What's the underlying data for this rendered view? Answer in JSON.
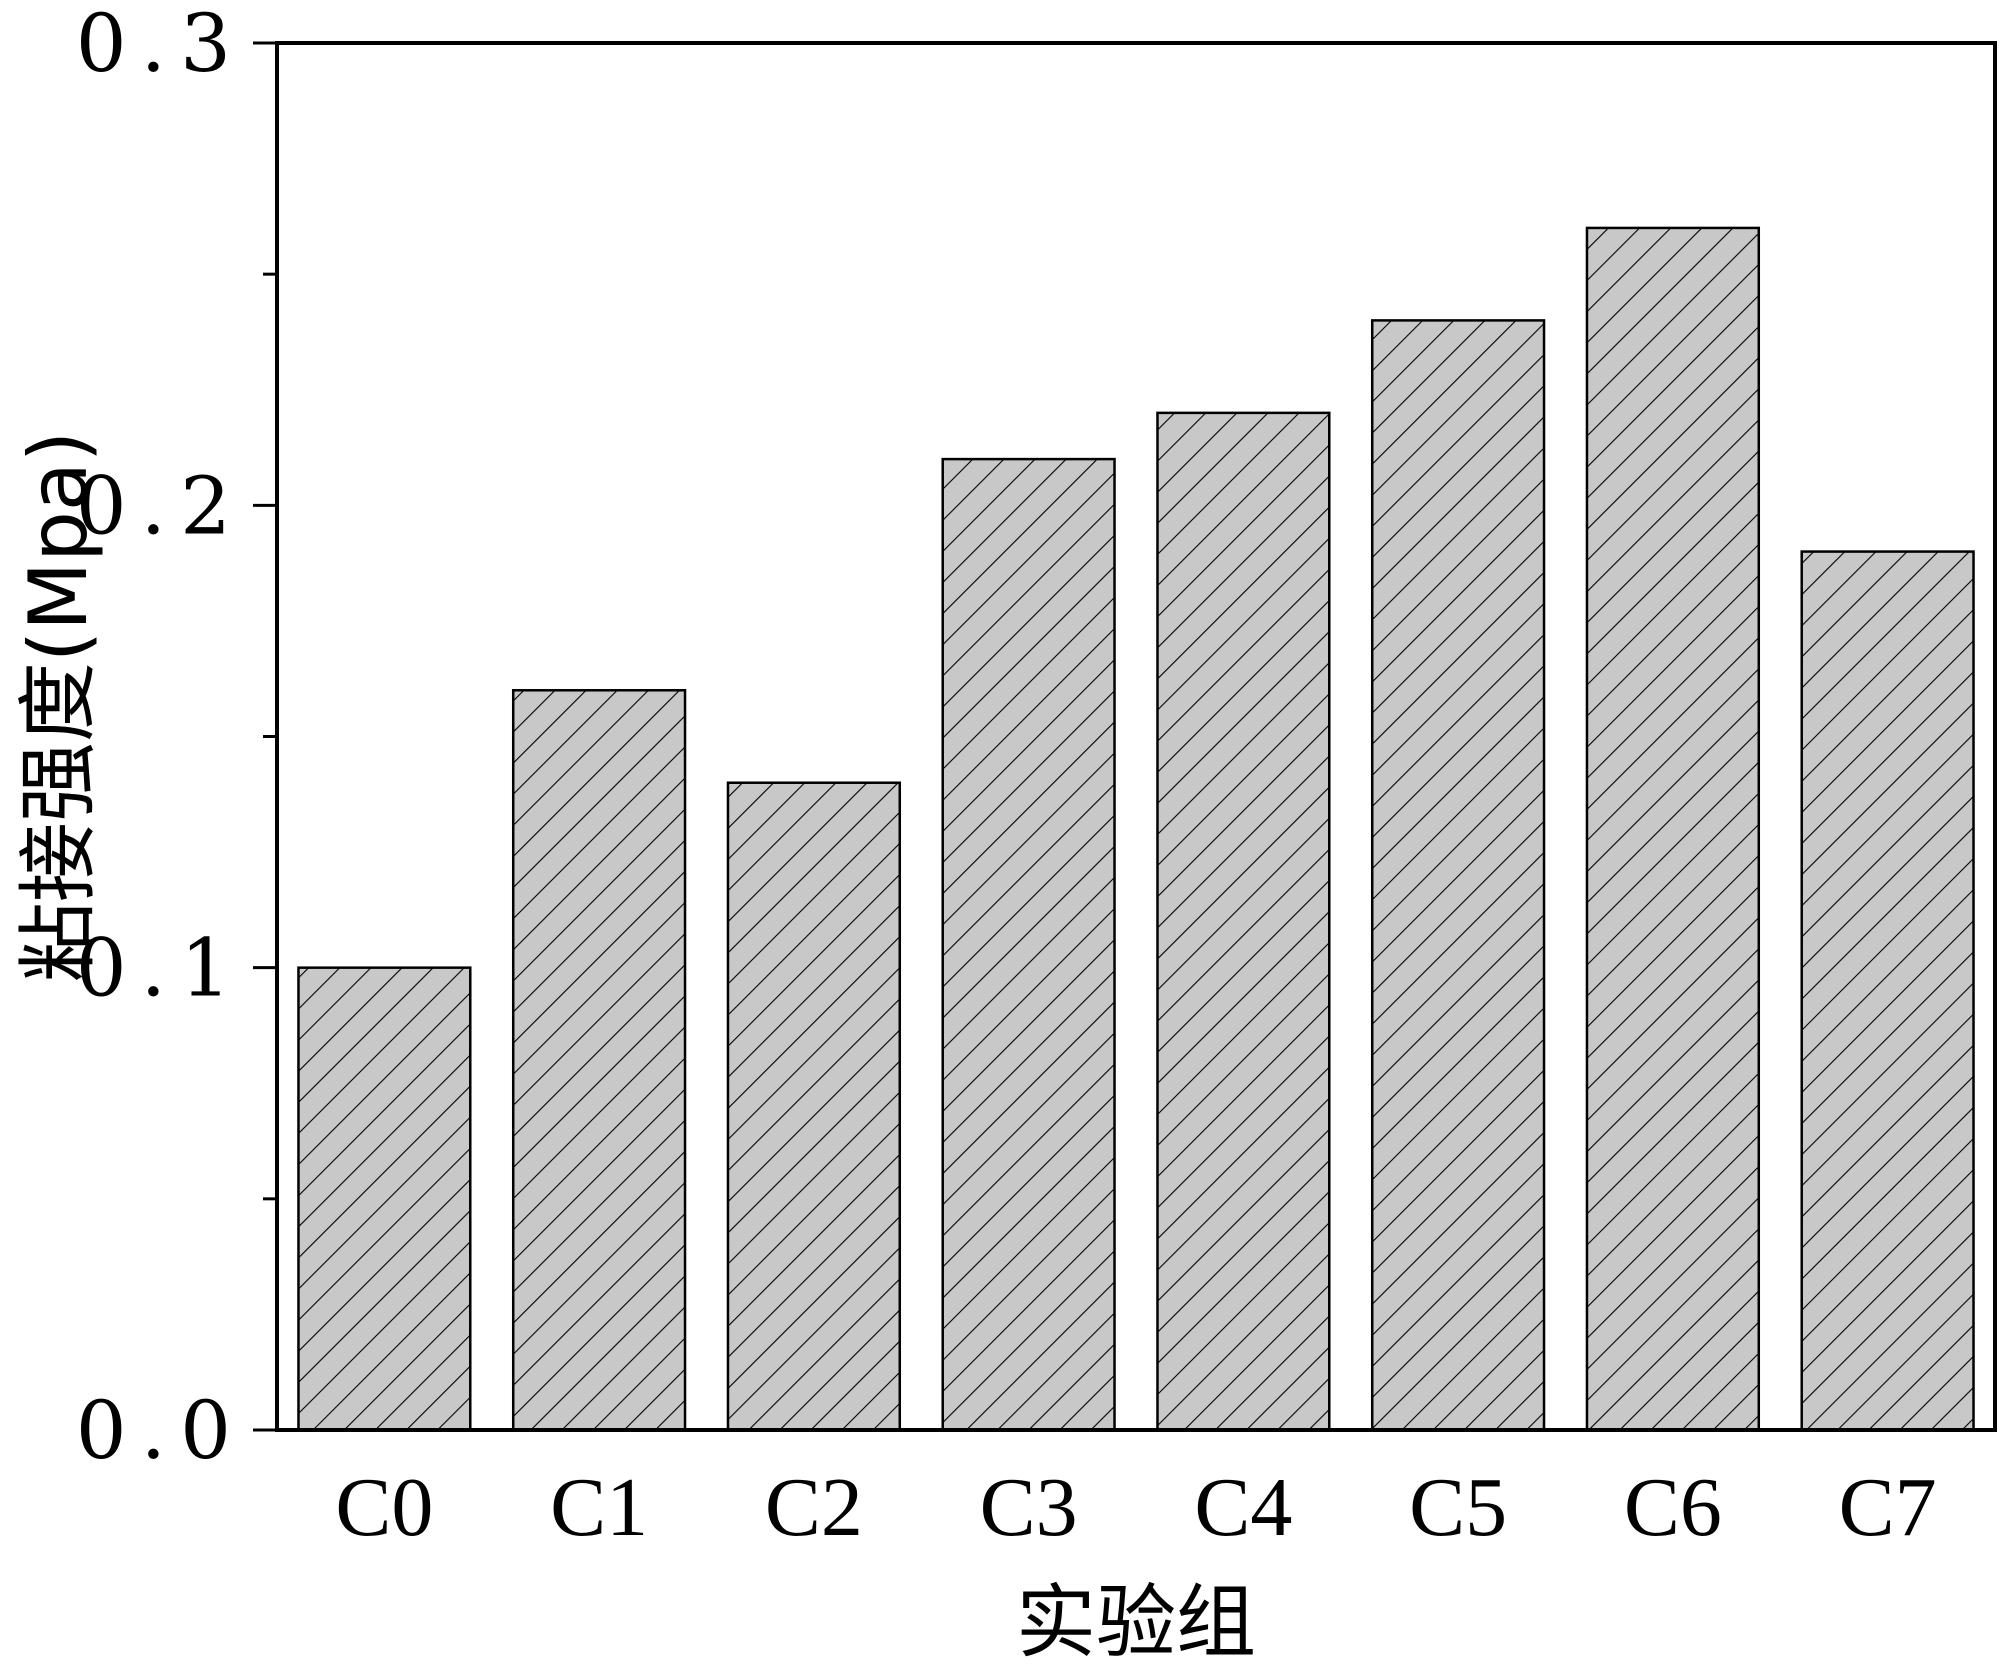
{
  "chart_data": {
    "type": "bar",
    "title": "",
    "xlabel": "实验组",
    "ylabel": "粘接强度(Mpa)",
    "categories": [
      "C0",
      "C1",
      "C2",
      "C3",
      "C4",
      "C5",
      "C6",
      "C7"
    ],
    "values": [
      0.1,
      0.16,
      0.14,
      0.21,
      0.22,
      0.24,
      0.26,
      0.19
    ],
    "ylim": [
      0,
      0.3
    ],
    "yticks": [
      "0.0",
      "0.1",
      "0.2",
      "0.3"
    ],
    "grid": false,
    "bar_fill": "#c8c8c8",
    "bar_hatch": "diagonal"
  }
}
